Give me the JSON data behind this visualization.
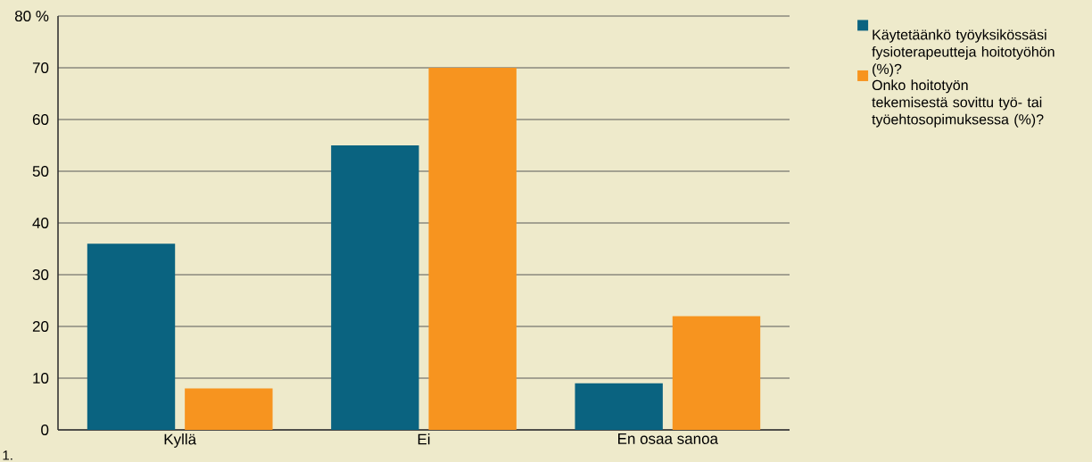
{
  "chart_data": {
    "type": "bar",
    "categories": [
      "Kyllä",
      "Ei",
      "En osaa sanoa"
    ],
    "series": [
      {
        "name": "Käytetäänkö työyksikössäsi fysioterapeutteja hoitotyöhön (%)?",
        "color": "#0a6380",
        "values": [
          36,
          55,
          9
        ]
      },
      {
        "name": "Onko hoitotyön tekemisestä sovittu työ- tai työehtosopimuksessa (%)?",
        "color": "#f7941f",
        "values": [
          8,
          70,
          22
        ]
      }
    ],
    "ylim": [
      0,
      80
    ],
    "yticks": [
      0,
      10,
      20,
      30,
      40,
      50,
      60,
      70,
      {
        "value": 80,
        "label": "80 %"
      }
    ],
    "grid": "y",
    "legend": "top right",
    "annotations": [
      "1."
    ]
  }
}
